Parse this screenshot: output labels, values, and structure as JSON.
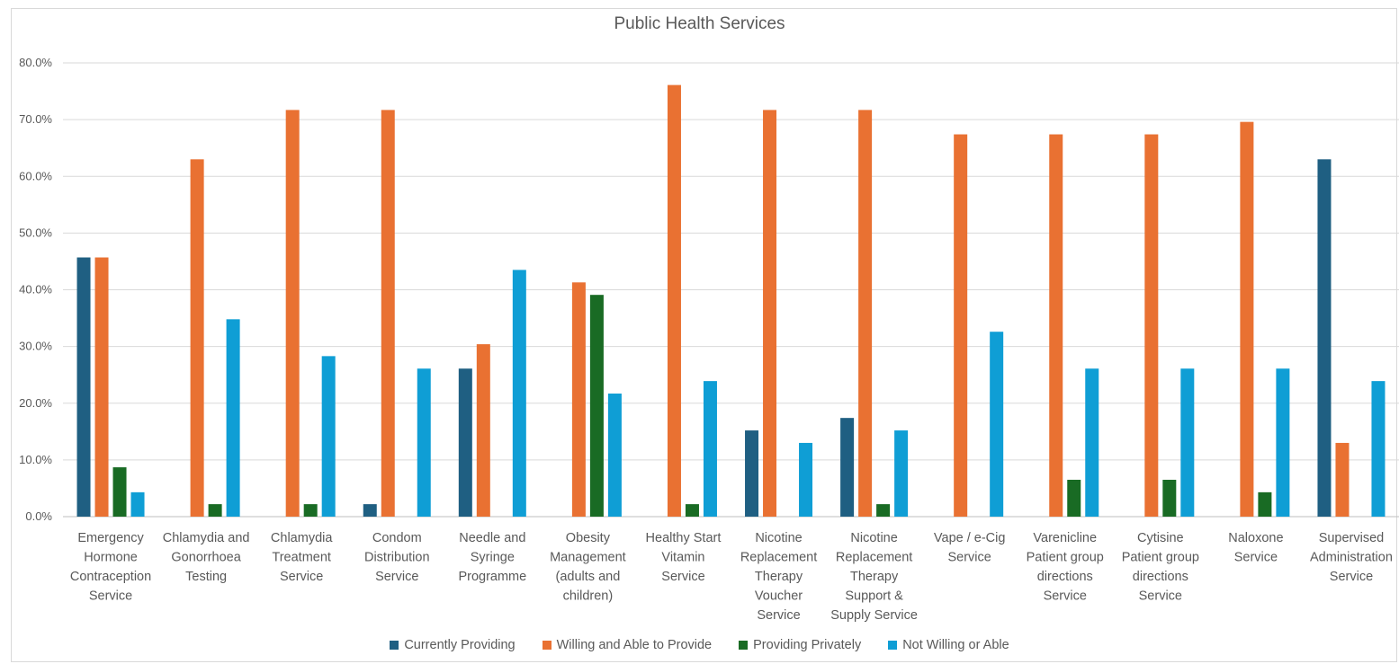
{
  "chart_data": {
    "type": "bar",
    "title": "Public Health Services",
    "xlabel": "",
    "ylabel": "",
    "ylim": [
      0,
      80
    ],
    "yticks": [
      "0.0%",
      "10.0%",
      "20.0%",
      "30.0%",
      "40.0%",
      "50.0%",
      "60.0%",
      "70.0%",
      "80.0%"
    ],
    "grid": true,
    "legend_position": "bottom",
    "categories": [
      [
        "Emergency",
        "Hormone",
        "Contraception",
        "Service"
      ],
      [
        "Chlamydia and",
        "Gonorrhoea",
        "Testing"
      ],
      [
        "Chlamydia",
        "Treatment",
        "Service"
      ],
      [
        "Condom",
        "Distribution",
        "Service"
      ],
      [
        "Needle and",
        "Syringe",
        "Programme"
      ],
      [
        "Obesity",
        "Management",
        "(adults and",
        "children)"
      ],
      [
        "Healthy Start",
        "Vitamin",
        "Service"
      ],
      [
        "Nicotine",
        "Replacement",
        "Therapy",
        "Voucher",
        "Service"
      ],
      [
        "Nicotine",
        "Replacement",
        "Therapy",
        "Support &",
        "Supply Service"
      ],
      [
        "Vape / e-Cig",
        "Service"
      ],
      [
        "Varenicline",
        "Patient group",
        "directions",
        "Service"
      ],
      [
        "Cytisine",
        "Patient group",
        "directions",
        "Service"
      ],
      [
        "Naloxone",
        "Service"
      ],
      [
        "Supervised",
        "Administration",
        "Service"
      ]
    ],
    "series": [
      {
        "name": "Currently Providing",
        "color": "#1f5f82",
        "values": [
          45.7,
          0,
          0,
          2.2,
          26.1,
          0,
          0,
          15.2,
          17.4,
          0,
          0,
          0,
          0,
          63.0
        ]
      },
      {
        "name": "Willing and Able to Provide",
        "color": "#e97132",
        "values": [
          45.7,
          63.0,
          71.7,
          71.7,
          30.4,
          41.3,
          76.1,
          71.7,
          71.7,
          67.4,
          67.4,
          67.4,
          69.6,
          13.0
        ]
      },
      {
        "name": "Providing Privately",
        "color": "#196b24",
        "values": [
          8.7,
          2.2,
          2.2,
          0,
          0,
          39.1,
          2.2,
          0,
          2.2,
          0,
          6.5,
          6.5,
          4.3,
          0
        ]
      },
      {
        "name": "Not Willing or Able",
        "color": "#0f9ed5",
        "values": [
          4.3,
          34.8,
          28.3,
          26.1,
          43.5,
          21.7,
          23.9,
          13.0,
          15.2,
          32.6,
          26.1,
          26.1,
          26.1,
          23.9
        ]
      }
    ]
  }
}
